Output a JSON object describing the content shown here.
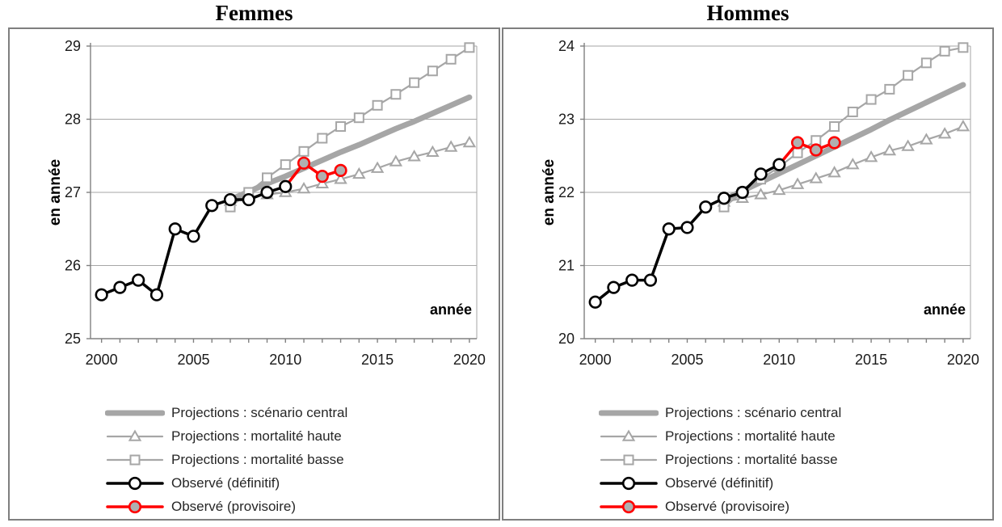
{
  "colors": {
    "projection_gray": "#a6a6a6",
    "observed_black": "#000000",
    "provisional_red": "#ff0000",
    "provisional_marker_fill": "#b0b0b0",
    "marker_fill_white": "#ffffff",
    "gridline": "#a6a6a6",
    "axis": "#808080",
    "panel_border": "#7f7f7f",
    "tick_text": "#1a1a1a",
    "legend_text": "#262626"
  },
  "chart_data": [
    {
      "type": "line",
      "title": "Femmes",
      "ylabel": "en année",
      "xlabel": "année",
      "ylim": [
        25,
        29
      ],
      "xlim": [
        1999.4,
        2020.4
      ],
      "yticks": [
        25,
        26,
        27,
        28,
        29
      ],
      "xticks": [
        2000,
        2005,
        2010,
        2015,
        2020
      ],
      "grid": true,
      "legend_position": "bottom-left",
      "series": [
        {
          "key": "central",
          "name": "Projections : scénario central",
          "years": [
            2007,
            2008,
            2009,
            2010,
            2011,
            2012,
            2013,
            2014,
            2015,
            2016,
            2017,
            2018,
            2019,
            2020
          ],
          "values": [
            26.9,
            27.01,
            27.12,
            27.22,
            27.33,
            27.44,
            27.55,
            27.65,
            27.76,
            27.87,
            27.97,
            28.08,
            28.19,
            28.3
          ]
        },
        {
          "key": "haute",
          "name": "Projections : mortalité haute",
          "years": [
            2007,
            2008,
            2009,
            2010,
            2011,
            2012,
            2013,
            2014,
            2015,
            2016,
            2017,
            2018,
            2019,
            2020
          ],
          "values": [
            26.88,
            26.93,
            26.97,
            27.0,
            27.05,
            27.12,
            27.18,
            27.25,
            27.33,
            27.42,
            27.49,
            27.55,
            27.62,
            27.68
          ]
        },
        {
          "key": "basse",
          "name": "Projections : mortalité basse",
          "years": [
            2007,
            2008,
            2009,
            2010,
            2011,
            2012,
            2013,
            2014,
            2015,
            2016,
            2017,
            2018,
            2019,
            2020
          ],
          "values": [
            26.8,
            27.0,
            27.2,
            27.38,
            27.56,
            27.74,
            27.9,
            28.02,
            28.19,
            28.34,
            28.5,
            28.66,
            28.82,
            28.98
          ]
        },
        {
          "key": "provisoire",
          "name": "Observé (provisoire)",
          "years": [
            2010,
            2011,
            2012,
            2013
          ],
          "values": [
            27.08,
            27.4,
            27.22,
            27.3
          ]
        },
        {
          "key": "definitif",
          "name": "Observé (définitif)",
          "years": [
            2000,
            2001,
            2002,
            2003,
            2004,
            2005,
            2006,
            2007,
            2008,
            2009,
            2010
          ],
          "values": [
            25.6,
            25.7,
            25.8,
            25.6,
            26.5,
            26.4,
            26.82,
            26.9,
            26.9,
            27.0,
            27.08
          ]
        }
      ]
    },
    {
      "type": "line",
      "title": "Hommes",
      "ylabel": "en année",
      "xlabel": "année",
      "ylim": [
        20,
        24
      ],
      "xlim": [
        1999.4,
        2020.4
      ],
      "yticks": [
        20,
        21,
        22,
        23,
        24
      ],
      "xticks": [
        2000,
        2005,
        2010,
        2015,
        2020
      ],
      "grid": true,
      "legend_position": "bottom-left",
      "series": [
        {
          "key": "central",
          "name": "Projections : scénario central",
          "years": [
            2007,
            2008,
            2009,
            2010,
            2011,
            2012,
            2013,
            2014,
            2015,
            2016,
            2017,
            2018,
            2019,
            2020
          ],
          "values": [
            21.9,
            22.02,
            22.14,
            22.26,
            22.38,
            22.5,
            22.62,
            22.74,
            22.86,
            22.99,
            23.11,
            23.23,
            23.35,
            23.47
          ]
        },
        {
          "key": "haute",
          "name": "Projections : mortalité haute",
          "years": [
            2007,
            2008,
            2009,
            2010,
            2011,
            2012,
            2013,
            2014,
            2015,
            2016,
            2017,
            2018,
            2019,
            2020
          ],
          "values": [
            21.87,
            21.92,
            21.97,
            22.03,
            22.11,
            22.19,
            22.27,
            22.38,
            22.48,
            22.57,
            22.63,
            22.72,
            22.8,
            22.9
          ]
        },
        {
          "key": "basse",
          "name": "Projections : mortalité basse",
          "years": [
            2007,
            2008,
            2009,
            2010,
            2011,
            2012,
            2013,
            2014,
            2015,
            2016,
            2017,
            2018,
            2019,
            2020
          ],
          "values": [
            21.8,
            22.0,
            22.18,
            22.35,
            22.54,
            22.71,
            22.9,
            23.1,
            23.27,
            23.41,
            23.6,
            23.77,
            23.93,
            23.98
          ]
        },
        {
          "key": "provisoire",
          "name": "Observé (provisoire)",
          "years": [
            2010,
            2011,
            2012,
            2013
          ],
          "values": [
            22.38,
            22.68,
            22.58,
            22.68
          ]
        },
        {
          "key": "definitif",
          "name": "Observé (définitif)",
          "years": [
            2000,
            2001,
            2002,
            2003,
            2004,
            2005,
            2006,
            2007,
            2008,
            2009,
            2010
          ],
          "values": [
            20.5,
            20.7,
            20.8,
            20.8,
            21.5,
            21.52,
            21.8,
            21.92,
            22.0,
            22.25,
            22.38
          ]
        }
      ]
    },
    {
      "legend_order": [
        "central",
        "haute",
        "basse",
        "definitif",
        "provisoire"
      ]
    }
  ]
}
